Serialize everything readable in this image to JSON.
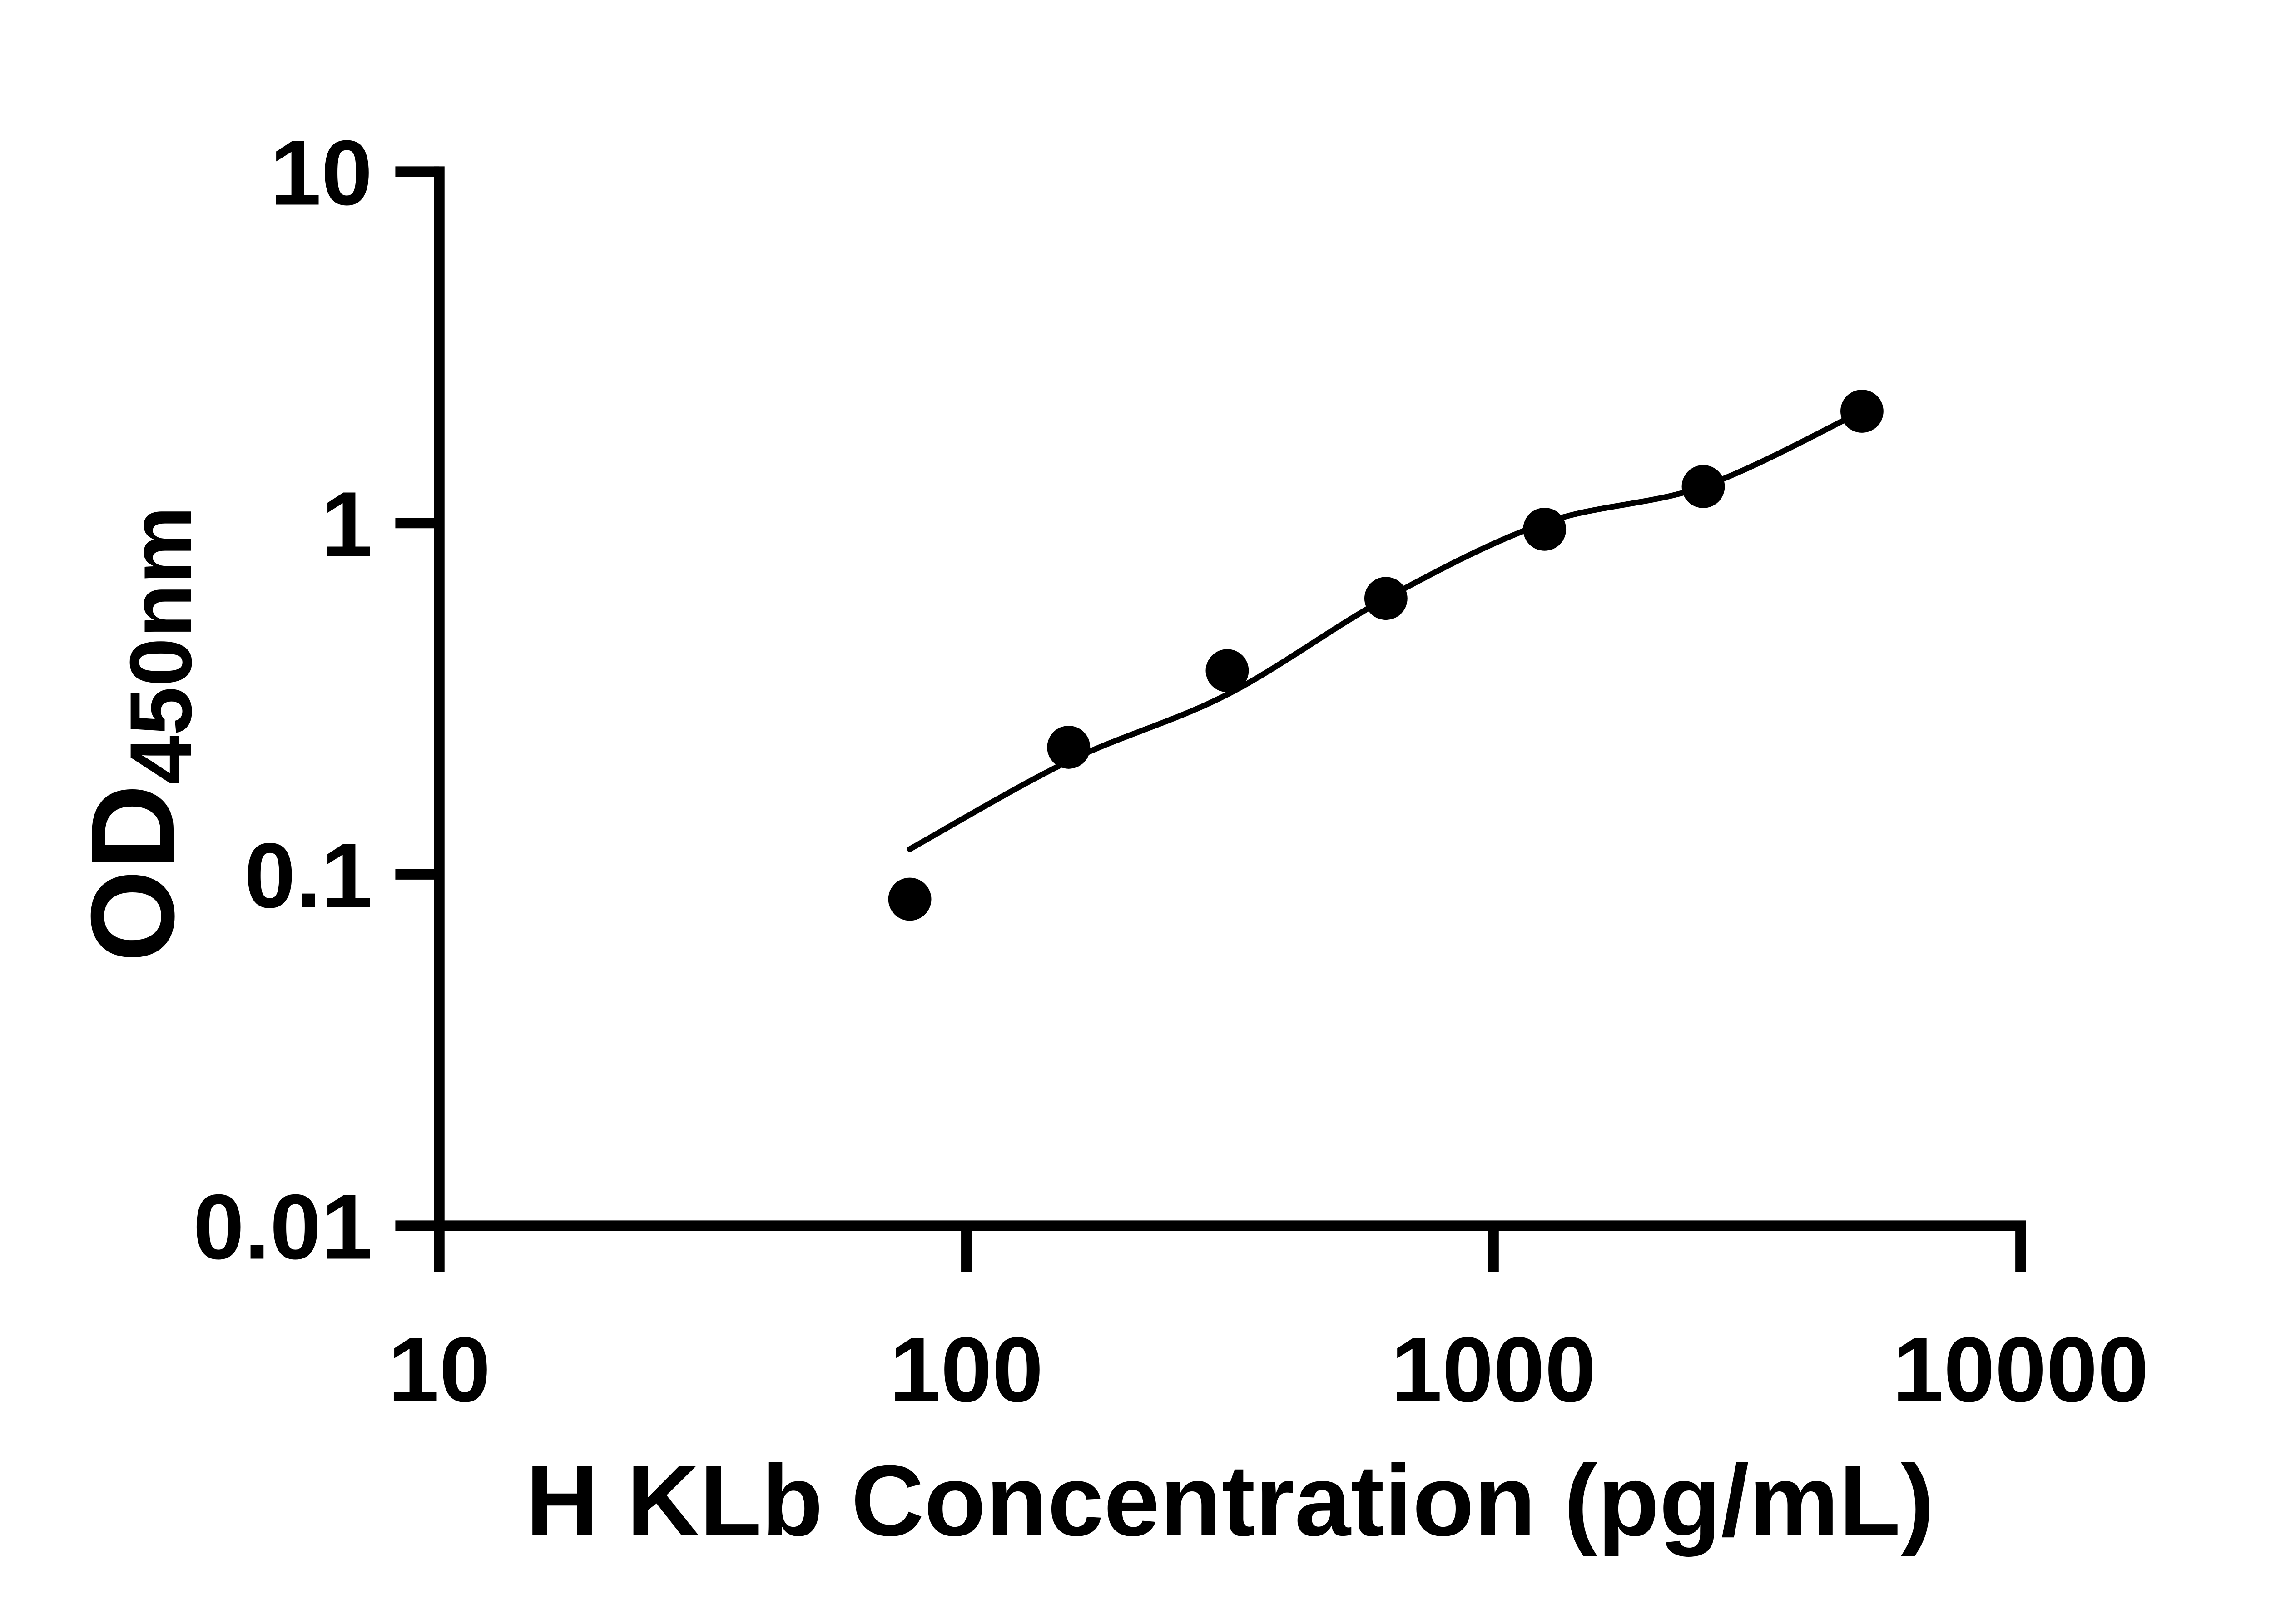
{
  "chart_data": {
    "type": "scatter",
    "title": "",
    "xlabel": "H KLb Concentration (pg/mL)",
    "ylabel_main": "OD",
    "ylabel_subscript": "450nm",
    "x_scale": "log",
    "y_scale": "log",
    "xlim": [
      10,
      10000
    ],
    "ylim": [
      0.01,
      10
    ],
    "grid": false,
    "legend": null,
    "x_ticks": [
      {
        "value": 10,
        "label": "10"
      },
      {
        "value": 100,
        "label": "100"
      },
      {
        "value": 1000,
        "label": "1000"
      },
      {
        "value": 10000,
        "label": "10000"
      }
    ],
    "y_ticks": [
      {
        "value": 0.01,
        "label": "0.01"
      },
      {
        "value": 0.1,
        "label": "0.1"
      },
      {
        "value": 1,
        "label": "1"
      },
      {
        "value": 10,
        "label": "10"
      }
    ],
    "series": [
      {
        "name": "standard-curve-points",
        "marker": "filled-circle",
        "color": "#000000",
        "points": [
          {
            "x": 78.1,
            "y": 0.085
          },
          {
            "x": 156.3,
            "y": 0.23
          },
          {
            "x": 312.5,
            "y": 0.38
          },
          {
            "x": 625,
            "y": 0.61
          },
          {
            "x": 1250,
            "y": 0.96
          },
          {
            "x": 2500,
            "y": 1.27
          },
          {
            "x": 5000,
            "y": 2.08
          }
        ]
      }
    ],
    "fit_curve": {
      "name": "fitted-standard-curve",
      "color": "#000000",
      "points": [
        [
          78.1,
          0.118
        ],
        [
          156.3,
          0.21
        ],
        [
          312.5,
          0.325
        ],
        [
          625,
          0.61
        ],
        [
          1250,
          1.0
        ],
        [
          2500,
          1.27
        ],
        [
          5000,
          2.08
        ]
      ]
    }
  },
  "colors": {
    "foreground": "#000000",
    "background": "#ffffff"
  }
}
